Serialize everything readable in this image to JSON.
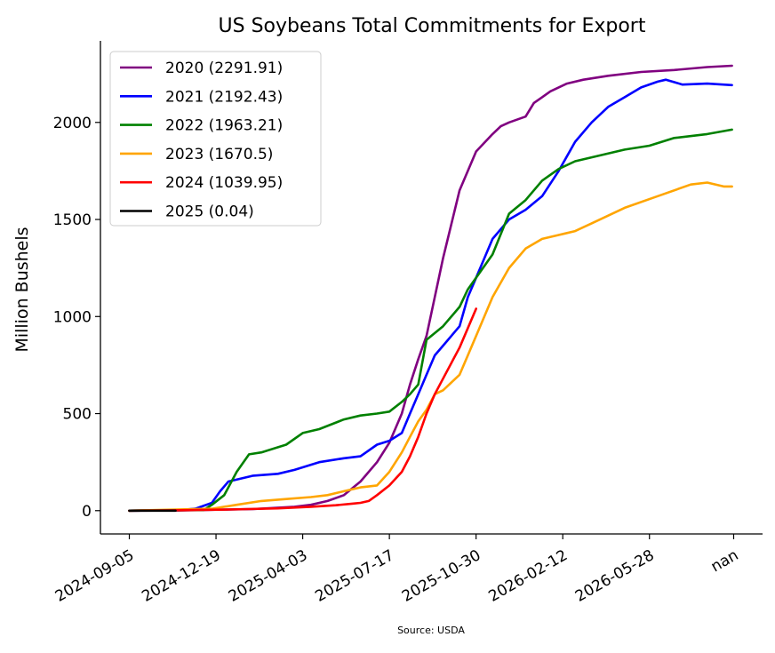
{
  "chart_data": {
    "type": "line",
    "title": "US Soybeans Total Commitments for Export",
    "xlabel": "",
    "ylabel": "Million Bushels",
    "source": "Source: USDA",
    "x_ticks": [
      "2024-09-05",
      "2024-12-19",
      "2025-04-03",
      "2025-07-17",
      "2025-10-30",
      "2026-02-12",
      "2026-05-28",
      "nan"
    ],
    "x_tick_days": [
      0,
      105,
      210,
      315,
      420,
      525,
      630,
      732
    ],
    "x_range_days": [
      -35,
      767
    ],
    "y_ticks": [
      0,
      500,
      1000,
      1500,
      2000
    ],
    "ylim": [
      -120,
      2420
    ],
    "grid": false,
    "legend_position": "top-left",
    "x_unit": "days since 2024-09-05",
    "series": [
      {
        "name": "2020 (2291.91)",
        "color": "#800080",
        "x": [
          0,
          60,
          90,
          105,
          150,
          200,
          220,
          240,
          260,
          280,
          300,
          315,
          330,
          340,
          350,
          360,
          370,
          380,
          400,
          420,
          440,
          450,
          460,
          480,
          490,
          500,
          510,
          530,
          550,
          580,
          620,
          660,
          700,
          730
        ],
        "y": [
          0,
          1,
          3,
          5,
          8,
          20,
          30,
          50,
          80,
          150,
          250,
          350,
          500,
          650,
          780,
          900,
          1100,
          1300,
          1650,
          1850,
          1940,
          1980,
          2000,
          2030,
          2100,
          2130,
          2160,
          2200,
          2220,
          2240,
          2260,
          2270,
          2285,
          2292
        ]
      },
      {
        "name": "2021 (2192.43)",
        "color": "#0000ff",
        "x": [
          0,
          60,
          80,
          100,
          110,
          120,
          150,
          180,
          200,
          230,
          260,
          280,
          300,
          315,
          330,
          340,
          350,
          360,
          370,
          380,
          400,
          410,
          420,
          440,
          460,
          480,
          500,
          520,
          540,
          560,
          580,
          600,
          620,
          640,
          650,
          670,
          700,
          730
        ],
        "y": [
          0,
          2,
          10,
          40,
          100,
          150,
          180,
          190,
          210,
          250,
          270,
          280,
          340,
          360,
          400,
          500,
          600,
          700,
          800,
          850,
          950,
          1100,
          1200,
          1400,
          1500,
          1550,
          1620,
          1750,
          1900,
          2000,
          2080,
          2130,
          2180,
          2210,
          2220,
          2195,
          2200,
          2192
        ]
      },
      {
        "name": "2022 (1963.21)",
        "color": "#008000",
        "x": [
          0,
          90,
          100,
          115,
          130,
          145,
          160,
          190,
          210,
          230,
          260,
          280,
          300,
          315,
          330,
          340,
          350,
          360,
          380,
          400,
          410,
          420,
          440,
          460,
          480,
          500,
          520,
          540,
          560,
          600,
          630,
          660,
          700,
          730
        ],
        "y": [
          0,
          3,
          30,
          80,
          200,
          290,
          300,
          340,
          400,
          420,
          470,
          490,
          500,
          510,
          560,
          600,
          650,
          880,
          950,
          1050,
          1140,
          1200,
          1320,
          1530,
          1600,
          1700,
          1760,
          1800,
          1820,
          1860,
          1880,
          1920,
          1940,
          1963
        ]
      },
      {
        "name": "2023 (1670.5)",
        "color": "#ffa500",
        "x": [
          0,
          100,
          130,
          160,
          190,
          220,
          240,
          260,
          280,
          300,
          315,
          330,
          340,
          350,
          360,
          370,
          380,
          400,
          410,
          420,
          440,
          460,
          480,
          500,
          520,
          540,
          560,
          600,
          640,
          680,
          700,
          720,
          730
        ],
        "y": [
          0,
          10,
          30,
          50,
          60,
          70,
          80,
          100,
          120,
          130,
          200,
          300,
          380,
          460,
          520,
          600,
          620,
          700,
          800,
          900,
          1100,
          1250,
          1350,
          1400,
          1420,
          1440,
          1480,
          1560,
          1620,
          1680,
          1690,
          1670,
          1670
        ]
      },
      {
        "name": "2024 (1039.95)",
        "color": "#ff0000",
        "x": [
          0,
          60,
          120,
          180,
          220,
          250,
          270,
          280,
          290,
          300,
          315,
          330,
          340,
          350,
          360,
          370,
          380,
          390,
          400,
          410,
          420
        ],
        "y": [
          0,
          2,
          6,
          12,
          20,
          28,
          36,
          40,
          50,
          80,
          130,
          200,
          280,
          380,
          500,
          600,
          680,
          760,
          840,
          940,
          1040
        ]
      },
      {
        "name": "2025 (0.04)",
        "color": "#000000",
        "x": [
          0,
          56
        ],
        "y": [
          0,
          0.04
        ]
      }
    ]
  }
}
